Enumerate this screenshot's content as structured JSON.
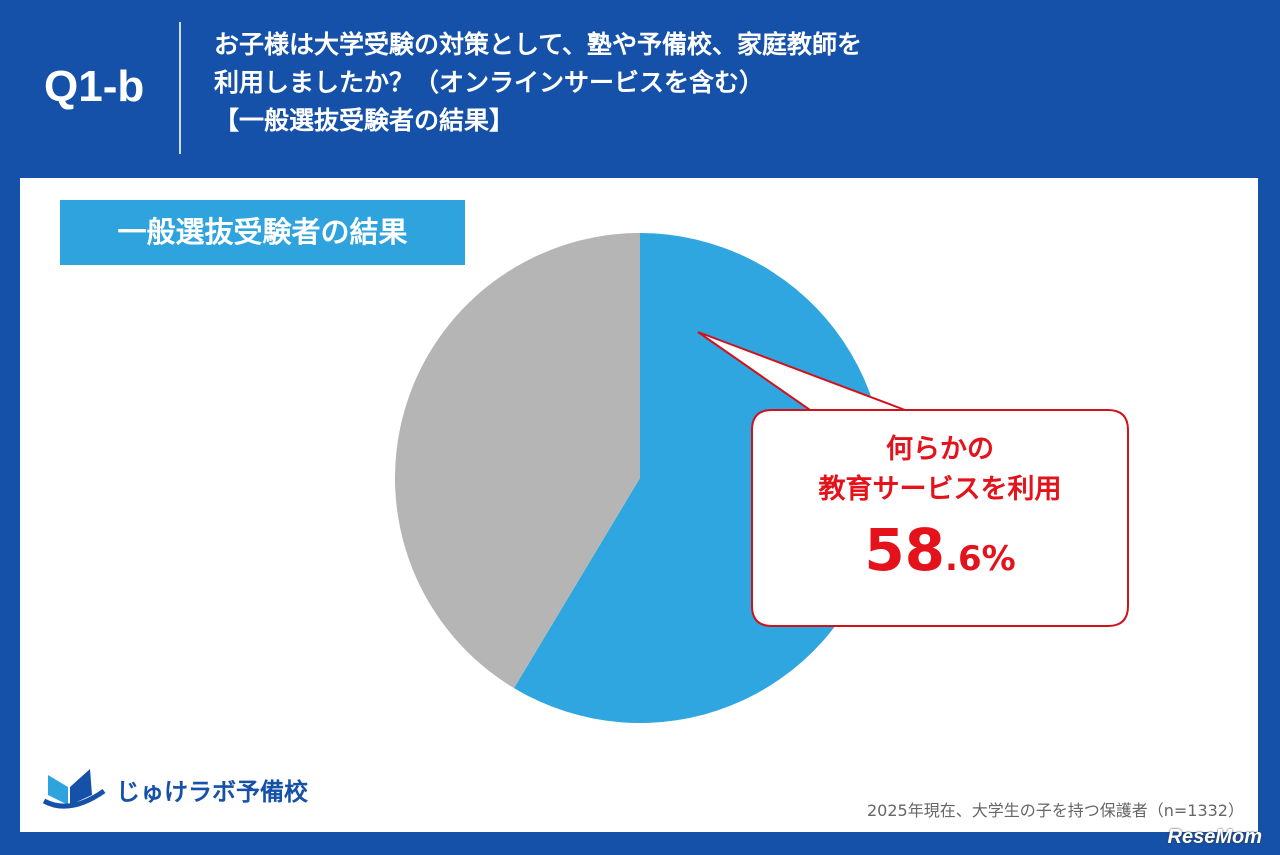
{
  "header": {
    "question_number": "Q1-b",
    "title": "お子様は大学受験の対策として、塾や予備校、家庭教師を\n利用しましたか？（オンラインサービスを含む）\n【一般選抜受験者の結果】"
  },
  "segment_label": "一般選抜受験者の結果",
  "chart_data": {
    "type": "pie",
    "start": "top",
    "direction": "clockwise",
    "slices": [
      {
        "label": "何らかの教育サービスを利用",
        "value": 58.6,
        "color": "#2fa6e0"
      },
      {
        "value": 41.4,
        "color": "#b5b5b5"
      }
    ],
    "annotation": {
      "line1": "何らかの",
      "line2": "教育サービスを利用",
      "value_int": "58",
      "value_dec": ".6%"
    }
  },
  "footer": {
    "logo_text": "じゅけラボ予備校",
    "note": "2025年現在、大学生の子を持つ保護者（n=1332）",
    "watermark": "ReseMom"
  }
}
